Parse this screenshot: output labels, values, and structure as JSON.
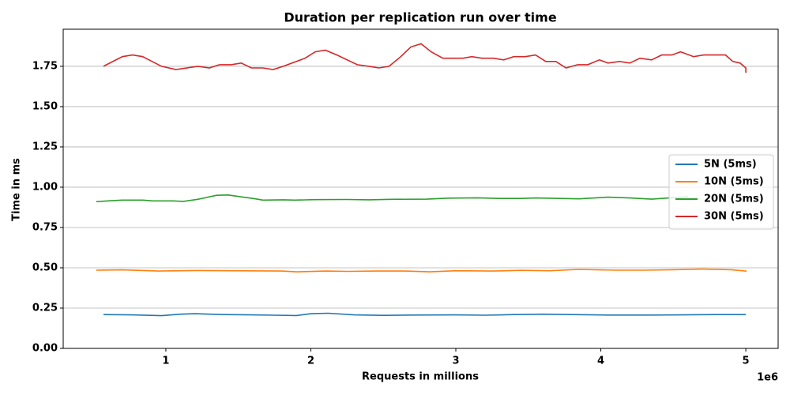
{
  "chart_data": {
    "type": "line",
    "title": "Duration per replication run over time",
    "xlabel": "Requests in millions",
    "ylabel": "Time in ms",
    "x_offset": "1e6",
    "xlim": [
      0.292,
      5.223
    ],
    "ylim": [
      0,
      1.98
    ],
    "xticks": [
      1,
      2,
      3,
      4,
      5
    ],
    "yticks": [
      {
        "value": 0,
        "label": "0.00"
      },
      {
        "value": 0.25,
        "label": "0.25"
      },
      {
        "value": 0.5,
        "label": "0.50"
      },
      {
        "value": 0.75,
        "label": "0.75"
      },
      {
        "value": 1,
        "label": "1.00"
      },
      {
        "value": 1.25,
        "label": "1.25"
      },
      {
        "value": 1.5,
        "label": "1.50"
      },
      {
        "value": 1.75,
        "label": "1.75"
      }
    ],
    "grid": "y",
    "legend": "right",
    "series": [
      {
        "name": "5N (5ms)",
        "color": "#1f77b4",
        "x": [
          0.57,
          0.77,
          0.97,
          1.1,
          1.2,
          1.4,
          1.6,
          1.75,
          1.9,
          2.0,
          2.12,
          2.3,
          2.5,
          2.7,
          3.0,
          3.2,
          3.4,
          3.6,
          3.8,
          4.05,
          4.35,
          4.55,
          4.8,
          5.0
        ],
        "values": [
          0.21,
          0.208,
          0.203,
          0.212,
          0.215,
          0.21,
          0.208,
          0.206,
          0.204,
          0.215,
          0.218,
          0.208,
          0.205,
          0.207,
          0.208,
          0.206,
          0.21,
          0.212,
          0.21,
          0.207,
          0.207,
          0.208,
          0.21,
          0.21
        ]
      },
      {
        "name": "10N (5ms)",
        "color": "#ff7f0e",
        "x": [
          0.52,
          0.7,
          0.95,
          1.2,
          1.45,
          1.8,
          1.9,
          2.1,
          2.25,
          2.45,
          2.65,
          2.82,
          3.0,
          3.25,
          3.45,
          3.65,
          3.85,
          4.1,
          4.3,
          4.5,
          4.7,
          4.9,
          5.0,
          5.0
        ],
        "values": [
          0.485,
          0.487,
          0.48,
          0.483,
          0.482,
          0.48,
          0.475,
          0.48,
          0.478,
          0.48,
          0.48,
          0.475,
          0.482,
          0.48,
          0.484,
          0.482,
          0.49,
          0.485,
          0.485,
          0.488,
          0.492,
          0.488,
          0.48,
          0.475
        ]
      },
      {
        "name": "20N (5ms)",
        "color": "#2ca02c",
        "x": [
          0.52,
          0.6,
          0.7,
          0.84,
          0.91,
          1.05,
          1.12,
          1.22,
          1.35,
          1.43,
          1.52,
          1.6,
          1.67,
          1.81,
          1.89,
          2.03,
          2.25,
          2.4,
          2.55,
          2.8,
          2.95,
          3.15,
          3.3,
          3.45,
          3.55,
          3.85,
          4.05,
          4.2,
          4.35,
          4.5,
          4.6
        ],
        "values": [
          0.91,
          0.915,
          0.92,
          0.92,
          0.915,
          0.915,
          0.912,
          0.925,
          0.95,
          0.952,
          0.94,
          0.93,
          0.92,
          0.922,
          0.92,
          0.923,
          0.924,
          0.922,
          0.925,
          0.926,
          0.932,
          0.934,
          0.93,
          0.93,
          0.933,
          0.928,
          0.938,
          0.933,
          0.926,
          0.935,
          0.94
        ]
      },
      {
        "name": "30N (5ms)",
        "color": "#d62728",
        "x": [
          0.57,
          0.7,
          0.77,
          0.84,
          0.97,
          1.07,
          1.22,
          1.3,
          1.37,
          1.45,
          1.52,
          1.59,
          1.67,
          1.74,
          1.81,
          1.96,
          2.03,
          2.1,
          2.18,
          2.32,
          2.4,
          2.47,
          2.54,
          2.62,
          2.69,
          2.76,
          2.83,
          2.91,
          3.05,
          3.11,
          3.18,
          3.26,
          3.33,
          3.4,
          3.48,
          3.55,
          3.62,
          3.69,
          3.76,
          3.84,
          3.91,
          3.99,
          4.05,
          4.13,
          4.2,
          4.27,
          4.35,
          4.42,
          4.49,
          4.55,
          4.64,
          4.71,
          4.86,
          4.91,
          4.96,
          5.0,
          5.0
        ],
        "values": [
          1.75,
          1.81,
          1.82,
          1.81,
          1.75,
          1.73,
          1.75,
          1.74,
          1.76,
          1.76,
          1.77,
          1.74,
          1.74,
          1.73,
          1.75,
          1.8,
          1.84,
          1.85,
          1.82,
          1.76,
          1.75,
          1.74,
          1.75,
          1.81,
          1.87,
          1.89,
          1.84,
          1.8,
          1.8,
          1.81,
          1.8,
          1.8,
          1.79,
          1.81,
          1.81,
          1.82,
          1.78,
          1.78,
          1.74,
          1.76,
          1.76,
          1.79,
          1.77,
          1.78,
          1.77,
          1.8,
          1.79,
          1.82,
          1.82,
          1.84,
          1.81,
          1.82,
          1.82,
          1.78,
          1.77,
          1.74,
          1.71
        ]
      }
    ]
  }
}
